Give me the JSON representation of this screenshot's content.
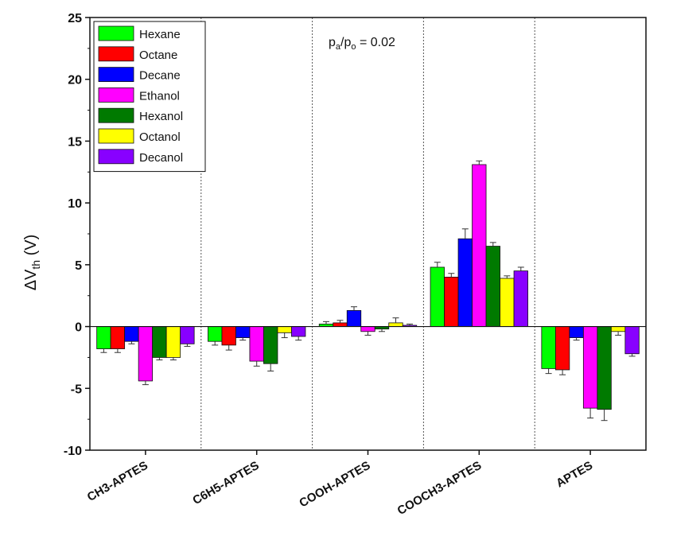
{
  "chart_data": {
    "type": "bar",
    "ylabel": "ΔV",
    "ylabel_sub": "th",
    "ylabel_unit": " (V)",
    "ylim": [
      -10,
      25
    ],
    "yticks": [
      "-10",
      "-5",
      "0",
      "5",
      "10",
      "15",
      "20",
      "25"
    ],
    "annotation": {
      "p1": "p",
      "s1": "a",
      "slash": "/p",
      "s2": "o",
      "rest": " = 0.02"
    },
    "legend_position": "top-left",
    "categories": [
      "CH3-APTES",
      "C6H5-APTES",
      "COOH-APTES",
      "COOCH3-APTES",
      "APTES"
    ],
    "series": [
      {
        "name": "Hexane",
        "color": "#00ff00",
        "values": [
          -1.8,
          -1.2,
          0.2,
          4.8,
          -3.4
        ],
        "errors": [
          0.3,
          0.3,
          0.2,
          0.4,
          0.4
        ]
      },
      {
        "name": "Octane",
        "color": "#ff0000",
        "values": [
          -1.8,
          -1.5,
          0.3,
          4.0,
          -3.5
        ],
        "errors": [
          0.3,
          0.4,
          0.2,
          0.3,
          0.4
        ]
      },
      {
        "name": "Decane",
        "color": "#0000ff",
        "values": [
          -1.2,
          -0.9,
          1.3,
          7.1,
          -0.9
        ],
        "errors": [
          0.2,
          0.2,
          0.3,
          0.8,
          0.2
        ]
      },
      {
        "name": "Ethanol",
        "color": "#ff00ff",
        "values": [
          -4.4,
          -2.8,
          -0.4,
          13.1,
          -6.6
        ],
        "errors": [
          0.3,
          0.4,
          0.3,
          0.3,
          0.8
        ]
      },
      {
        "name": "Hexanol",
        "color": "#007a00",
        "values": [
          -2.5,
          -3.0,
          -0.2,
          6.5,
          -6.7
        ],
        "errors": [
          0.2,
          0.6,
          0.2,
          0.3,
          0.9
        ]
      },
      {
        "name": "Octanol",
        "color": "#ffff00",
        "values": [
          -2.5,
          -0.5,
          0.3,
          3.9,
          -0.4
        ],
        "errors": [
          0.2,
          0.4,
          0.4,
          0.2,
          0.3
        ]
      },
      {
        "name": "Decanol",
        "color": "#8800ff",
        "values": [
          -1.4,
          -0.8,
          0.1,
          4.5,
          -2.2
        ],
        "errors": [
          0.2,
          0.3,
          0.1,
          0.3,
          0.2
        ]
      }
    ]
  }
}
